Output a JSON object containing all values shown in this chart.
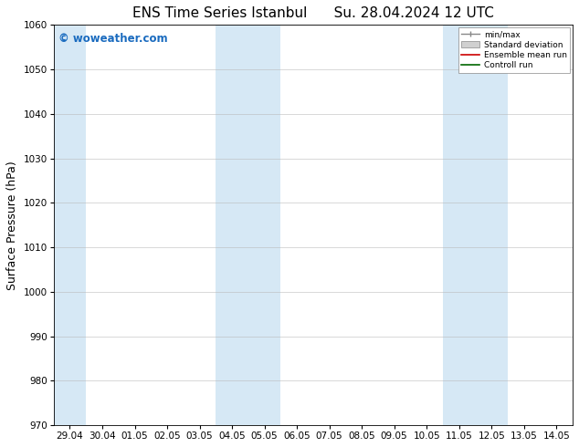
{
  "title": "ENS Time Series Istanbul",
  "title2": "Su. 28.04.2024 12 UTC",
  "ylabel": "Surface Pressure (hPa)",
  "ylim": [
    970,
    1060
  ],
  "yticks": [
    970,
    980,
    990,
    1000,
    1010,
    1020,
    1030,
    1040,
    1050,
    1060
  ],
  "x_labels": [
    "29.04",
    "30.04",
    "01.05",
    "02.05",
    "03.05",
    "04.05",
    "05.05",
    "06.05",
    "07.05",
    "08.05",
    "09.05",
    "10.05",
    "11.05",
    "12.05",
    "13.05",
    "14.05"
  ],
  "x_values": [
    0,
    1,
    2,
    3,
    4,
    5,
    6,
    7,
    8,
    9,
    10,
    11,
    12,
    13,
    14,
    15
  ],
  "shaded_bands": [
    {
      "xmin": -0.5,
      "xmax": 0.5
    },
    {
      "xmin": 4.5,
      "xmax": 6.5
    },
    {
      "xmin": 11.5,
      "xmax": 13.5
    }
  ],
  "shade_color": "#d6e8f5",
  "watermark": "© woweather.com",
  "watermark_color": "#1a6bbf",
  "legend_labels": [
    "min/max",
    "Standard deviation",
    "Ensemble mean run",
    "Controll run"
  ],
  "legend_colors": [
    "#aaaaaa",
    "#cccccc",
    "#ff0000",
    "#008000"
  ],
  "bg_color": "#ffffff",
  "grid_color": "#bbbbbb",
  "title_fontsize": 11,
  "tick_fontsize": 7.5,
  "ylabel_fontsize": 9
}
